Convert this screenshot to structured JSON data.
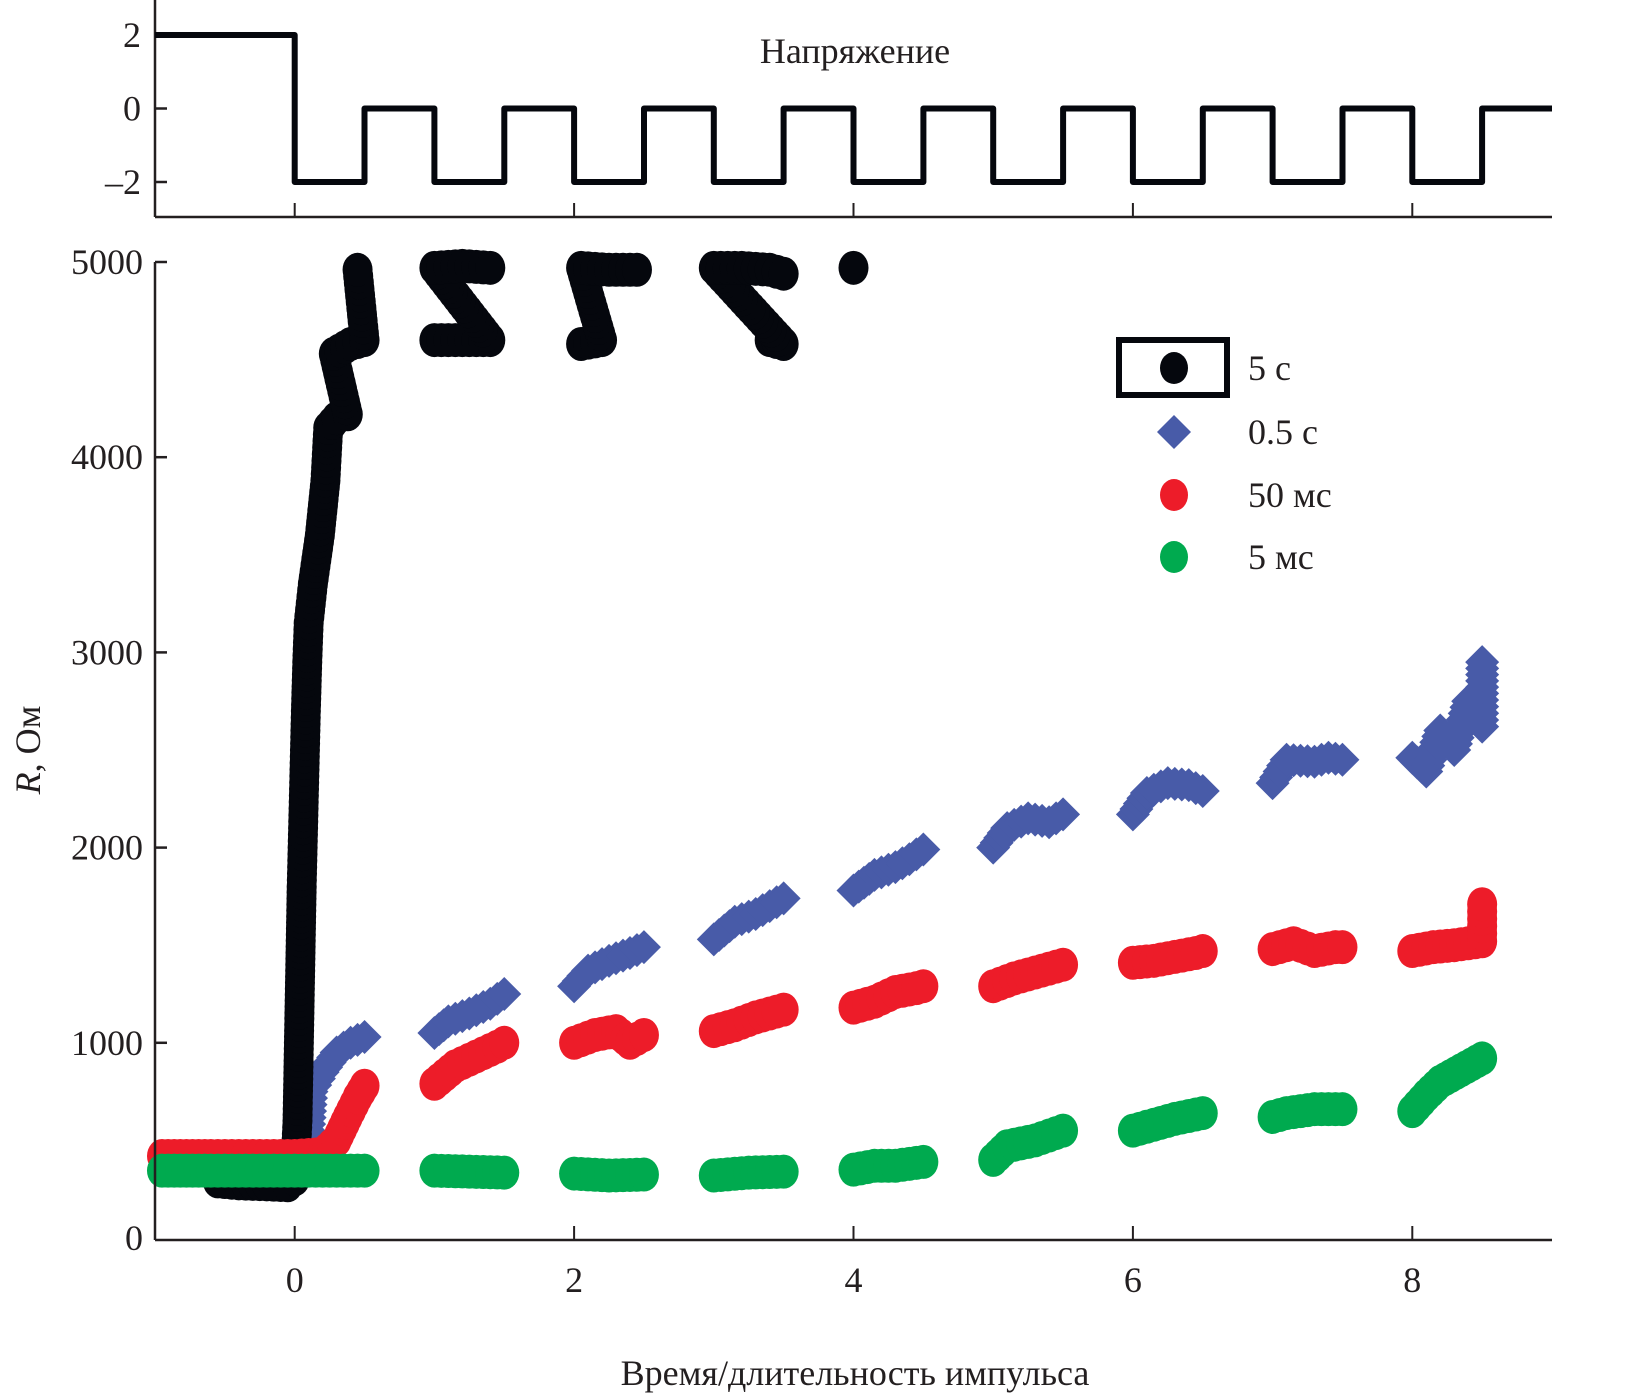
{
  "chart_data": [
    {
      "id": "voltage",
      "type": "line",
      "title": "",
      "annotation": "Напряжение",
      "xlabel": "",
      "ylabel": "",
      "xlim": [
        -1,
        9
      ],
      "ylim": [
        -3,
        3
      ],
      "yticks": [
        2,
        0,
        -2
      ],
      "ytick_labels": [
        "2",
        "0",
        "–2"
      ],
      "xticks": [
        0,
        2,
        4,
        6,
        8
      ],
      "grid": false,
      "series": [
        {
          "name": "Напряжение",
          "color": "#05070d",
          "step_points": [
            [
              -1,
              2
            ],
            [
              0,
              2
            ],
            [
              0,
              -2
            ],
            [
              0.5,
              -2
            ],
            [
              0.5,
              0
            ],
            [
              1,
              0
            ],
            [
              1,
              -2
            ],
            [
              1.5,
              -2
            ],
            [
              1.5,
              0
            ],
            [
              2,
              0
            ],
            [
              2,
              -2
            ],
            [
              2.5,
              -2
            ],
            [
              2.5,
              0
            ],
            [
              3,
              0
            ],
            [
              3,
              -2
            ],
            [
              3.5,
              -2
            ],
            [
              3.5,
              0
            ],
            [
              4,
              0
            ],
            [
              4,
              -2
            ],
            [
              4.5,
              -2
            ],
            [
              4.5,
              0
            ],
            [
              5,
              0
            ],
            [
              5,
              -2
            ],
            [
              5.5,
              -2
            ],
            [
              5.5,
              0
            ],
            [
              6,
              0
            ],
            [
              6,
              -2
            ],
            [
              6.5,
              -2
            ],
            [
              6.5,
              0
            ],
            [
              7,
              0
            ],
            [
              7,
              -2
            ],
            [
              7.5,
              -2
            ],
            [
              7.5,
              0
            ],
            [
              8,
              0
            ],
            [
              8,
              -2
            ],
            [
              8.5,
              -2
            ],
            [
              8.5,
              0
            ],
            [
              9,
              0
            ]
          ]
        }
      ]
    },
    {
      "id": "resistance",
      "type": "scatter",
      "title": "",
      "xlabel": "Время/длительность импульса",
      "ylabel_italic": "R",
      "ylabel_rest": ", Ом",
      "xlim": [
        -1,
        9
      ],
      "ylim": [
        0,
        5000
      ],
      "xticks": [
        0,
        2,
        4,
        6,
        8
      ],
      "xtick_labels": [
        "0",
        "2",
        "4",
        "6",
        "8"
      ],
      "yticks": [
        0,
        1000,
        2000,
        3000,
        4000,
        5000
      ],
      "ytick_labels": [
        "0",
        "1000",
        "2000",
        "3000",
        "4000",
        "5000"
      ],
      "grid": false,
      "legend_position": "top-right",
      "series": [
        {
          "name": "5 с",
          "marker": "circle",
          "color": "#05070d",
          "highlighted": true,
          "segments": [
            [
              [
                -0.55,
                290
              ],
              [
                -0.4,
                280
              ],
              [
                -0.2,
                275
              ],
              [
                -0.05,
                270
              ],
              [
                0.0,
                300
              ],
              [
                0.02,
                600
              ],
              [
                0.03,
                1000
              ],
              [
                0.04,
                1400
              ],
              [
                0.05,
                1800
              ],
              [
                0.06,
                2100
              ],
              [
                0.07,
                2400
              ],
              [
                0.08,
                2700
              ],
              [
                0.09,
                2950
              ],
              [
                0.1,
                3150
              ],
              [
                0.13,
                3350
              ],
              [
                0.18,
                3600
              ],
              [
                0.22,
                3880
              ],
              [
                0.24,
                4150
              ],
              [
                0.3,
                4200
              ],
              [
                0.38,
                4220
              ],
              [
                0.28,
                4530
              ],
              [
                0.4,
                4580
              ],
              [
                0.5,
                4600
              ],
              [
                0.45,
                4960
              ]
            ],
            [
              [
                1.0,
                4600
              ],
              [
                1.2,
                4600
              ],
              [
                1.4,
                4600
              ],
              [
                1.0,
                4970
              ],
              [
                1.2,
                4980
              ],
              [
                1.4,
                4970
              ]
            ],
            [
              [
                2.05,
                4580
              ],
              [
                2.2,
                4600
              ],
              [
                2.05,
                4970
              ],
              [
                2.25,
                4960
              ],
              [
                2.45,
                4960
              ]
            ],
            [
              [
                3.4,
                4600
              ],
              [
                3.5,
                4580
              ],
              [
                3.0,
                4970
              ],
              [
                3.2,
                4970
              ],
              [
                3.4,
                4960
              ],
              [
                3.5,
                4940
              ]
            ],
            [
              [
                4.0,
                4970
              ]
            ]
          ]
        },
        {
          "name": "0.5 с",
          "marker": "diamond",
          "color": "#485ba8",
          "highlighted": false,
          "segments": [
            [
              [
                0.1,
                550
              ],
              [
                0.12,
                750
              ],
              [
                0.2,
                850
              ],
              [
                0.3,
                950
              ],
              [
                0.4,
                1000
              ],
              [
                0.5,
                1030
              ]
            ],
            [
              [
                1.0,
                1050
              ],
              [
                1.1,
                1110
              ],
              [
                1.25,
                1150
              ],
              [
                1.4,
                1200
              ],
              [
                1.5,
                1250
              ]
            ],
            [
              [
                2.0,
                1290
              ],
              [
                2.1,
                1370
              ],
              [
                2.25,
                1420
              ],
              [
                2.4,
                1460
              ],
              [
                2.5,
                1490
              ]
            ],
            [
              [
                3.0,
                1530
              ],
              [
                3.15,
                1620
              ],
              [
                3.3,
                1660
              ],
              [
                3.4,
                1700
              ],
              [
                3.5,
                1740
              ]
            ],
            [
              [
                4.0,
                1780
              ],
              [
                4.15,
                1860
              ],
              [
                4.3,
                1900
              ],
              [
                4.4,
                1940
              ],
              [
                4.5,
                1990
              ]
            ],
            [
              [
                5.0,
                2000
              ],
              [
                5.1,
                2100
              ],
              [
                5.25,
                2150
              ],
              [
                5.4,
                2130
              ],
              [
                5.5,
                2170
              ]
            ],
            [
              [
                6.0,
                2170
              ],
              [
                6.1,
                2280
              ],
              [
                6.25,
                2330
              ],
              [
                6.4,
                2320
              ],
              [
                6.5,
                2290
              ]
            ],
            [
              [
                7.0,
                2330
              ],
              [
                7.1,
                2450
              ],
              [
                7.3,
                2440
              ],
              [
                7.4,
                2460
              ],
              [
                7.5,
                2450
              ]
            ],
            [
              [
                8.0,
                2460
              ],
              [
                8.1,
                2390
              ],
              [
                8.2,
                2600
              ],
              [
                8.3,
                2500
              ],
              [
                8.4,
                2750
              ],
              [
                8.5,
                2620
              ],
              [
                8.5,
                2790
              ],
              [
                8.5,
                2950
              ]
            ]
          ]
        },
        {
          "name": "50 мс",
          "marker": "circle",
          "color": "#ed1c29",
          "highlighted": false,
          "segments": [
            [
              [
                -0.95,
                420
              ],
              [
                -0.6,
                420
              ],
              [
                -0.3,
                420
              ],
              [
                0.0,
                420
              ],
              [
                0.2,
                430
              ],
              [
                0.3,
                500
              ],
              [
                0.38,
                620
              ],
              [
                0.45,
                720
              ],
              [
                0.5,
                780
              ]
            ],
            [
              [
                1.0,
                790
              ],
              [
                1.15,
                880
              ],
              [
                1.3,
                930
              ],
              [
                1.45,
                980
              ],
              [
                1.5,
                1000
              ]
            ],
            [
              [
                2.0,
                1000
              ],
              [
                2.15,
                1040
              ],
              [
                2.3,
                1060
              ],
              [
                2.4,
                1000
              ],
              [
                2.5,
                1040
              ]
            ],
            [
              [
                3.0,
                1060
              ],
              [
                3.15,
                1090
              ],
              [
                3.3,
                1130
              ],
              [
                3.45,
                1160
              ],
              [
                3.5,
                1170
              ]
            ],
            [
              [
                4.0,
                1180
              ],
              [
                4.15,
                1210
              ],
              [
                4.3,
                1260
              ],
              [
                4.45,
                1280
              ],
              [
                4.5,
                1290
              ]
            ],
            [
              [
                5.0,
                1290
              ],
              [
                5.15,
                1330
              ],
              [
                5.3,
                1360
              ],
              [
                5.45,
                1390
              ],
              [
                5.5,
                1400
              ]
            ],
            [
              [
                6.0,
                1410
              ],
              [
                6.15,
                1420
              ],
              [
                6.3,
                1440
              ],
              [
                6.45,
                1460
              ],
              [
                6.5,
                1470
              ]
            ],
            [
              [
                7.0,
                1480
              ],
              [
                7.15,
                1510
              ],
              [
                7.3,
                1470
              ],
              [
                7.45,
                1490
              ],
              [
                7.5,
                1490
              ]
            ],
            [
              [
                8.0,
                1470
              ],
              [
                8.15,
                1490
              ],
              [
                8.3,
                1500
              ],
              [
                8.5,
                1520
              ],
              [
                8.5,
                1560
              ],
              [
                8.5,
                1710
              ]
            ]
          ]
        },
        {
          "name": "5 мс",
          "marker": "circle",
          "color": "#00aa4f",
          "highlighted": false,
          "segments": [
            [
              [
                -0.95,
                345
              ],
              [
                -0.6,
                345
              ],
              [
                -0.3,
                345
              ],
              [
                0.0,
                345
              ],
              [
                0.3,
                345
              ],
              [
                0.5,
                345
              ]
            ],
            [
              [
                1.0,
                345
              ],
              [
                1.25,
                340
              ],
              [
                1.5,
                335
              ]
            ],
            [
              [
                2.0,
                330
              ],
              [
                2.25,
                320
              ],
              [
                2.5,
                325
              ]
            ],
            [
              [
                3.0,
                320
              ],
              [
                3.25,
                335
              ],
              [
                3.5,
                340
              ]
            ],
            [
              [
                4.0,
                350
              ],
              [
                4.15,
                370
              ],
              [
                4.3,
                370
              ],
              [
                4.5,
                390
              ]
            ],
            [
              [
                5.0,
                400
              ],
              [
                5.1,
                470
              ],
              [
                5.3,
                500
              ],
              [
                5.5,
                550
              ]
            ],
            [
              [
                6.0,
                550
              ],
              [
                6.15,
                580
              ],
              [
                6.3,
                610
              ],
              [
                6.5,
                640
              ]
            ],
            [
              [
                7.0,
                620
              ],
              [
                7.1,
                640
              ],
              [
                7.3,
                660
              ],
              [
                7.5,
                660
              ]
            ],
            [
              [
                8.0,
                650
              ],
              [
                8.1,
                730
              ],
              [
                8.2,
                800
              ],
              [
                8.35,
                860
              ],
              [
                8.5,
                920
              ]
            ]
          ]
        }
      ]
    }
  ]
}
